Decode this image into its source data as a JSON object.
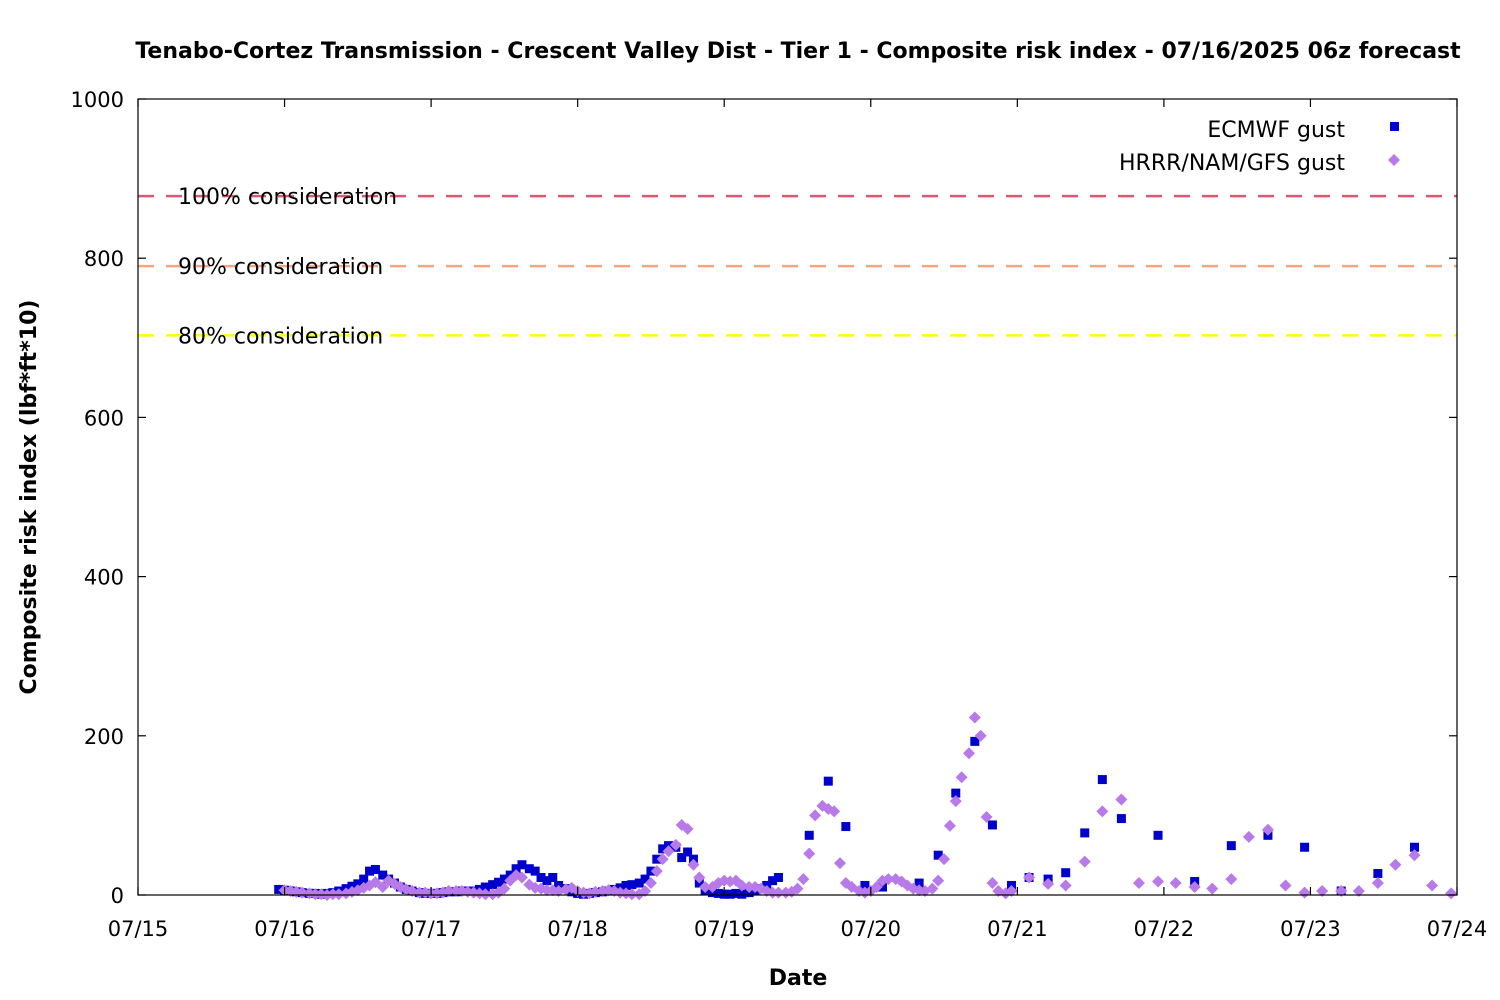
{
  "chart_data": {
    "type": "scatter",
    "title": "Tenabo-Cortez Transmission - Crescent Valley Dist - Tier 1 - Composite risk index - 07/16/2025 06z forecast",
    "xlabel": "Date",
    "ylabel": "Composite risk index (lbf*ft*10)",
    "x_unit": "days after 07/15 00z",
    "xlim": [
      0,
      9
    ],
    "ylim": [
      0,
      1000
    ],
    "x_ticks": [
      {
        "x": 0,
        "label": "07/15"
      },
      {
        "x": 1,
        "label": "07/16"
      },
      {
        "x": 2,
        "label": "07/17"
      },
      {
        "x": 3,
        "label": "07/18"
      },
      {
        "x": 4,
        "label": "07/19"
      },
      {
        "x": 5,
        "label": "07/20"
      },
      {
        "x": 6,
        "label": "07/21"
      },
      {
        "x": 7,
        "label": "07/22"
      },
      {
        "x": 8,
        "label": "07/23"
      },
      {
        "x": 9,
        "label": "07/24"
      }
    ],
    "y_ticks": [
      {
        "y": 0,
        "label": "0"
      },
      {
        "y": 200,
        "label": "200"
      },
      {
        "y": 400,
        "label": "400"
      },
      {
        "y": 600,
        "label": "600"
      },
      {
        "y": 800,
        "label": "800"
      },
      {
        "y": 1000,
        "label": "1000"
      }
    ],
    "thresholds": [
      {
        "label": "100% consideration",
        "value": 878,
        "color": "#d9596f"
      },
      {
        "label": "90% consideration",
        "value": 790,
        "color": "#f4a582"
      },
      {
        "label": "80% consideration",
        "value": 703,
        "color": "#ffff00"
      }
    ],
    "legend_position": "top-right",
    "series": [
      {
        "name": "ECMWF gust",
        "marker": "square",
        "color": "#0000cc",
        "points": [
          [
            0.96,
            7
          ],
          [
            1.0,
            6
          ],
          [
            1.04,
            5
          ],
          [
            1.08,
            4
          ],
          [
            1.12,
            3
          ],
          [
            1.17,
            2
          ],
          [
            1.21,
            2
          ],
          [
            1.25,
            1
          ],
          [
            1.29,
            2
          ],
          [
            1.33,
            3
          ],
          [
            1.37,
            5
          ],
          [
            1.42,
            8
          ],
          [
            1.46,
            11
          ],
          [
            1.5,
            14
          ],
          [
            1.54,
            20
          ],
          [
            1.58,
            30
          ],
          [
            1.62,
            32
          ],
          [
            1.67,
            25
          ],
          [
            1.71,
            20
          ],
          [
            1.75,
            15
          ],
          [
            1.79,
            10
          ],
          [
            1.83,
            7
          ],
          [
            1.87,
            5
          ],
          [
            1.92,
            3
          ],
          [
            1.96,
            2
          ],
          [
            2.0,
            2
          ],
          [
            2.04,
            2
          ],
          [
            2.08,
            3
          ],
          [
            2.12,
            4
          ],
          [
            2.17,
            4
          ],
          [
            2.21,
            5
          ],
          [
            2.25,
            5
          ],
          [
            2.29,
            5
          ],
          [
            2.33,
            7
          ],
          [
            2.37,
            10
          ],
          [
            2.42,
            13
          ],
          [
            2.46,
            16
          ],
          [
            2.5,
            20
          ],
          [
            2.54,
            25
          ],
          [
            2.58,
            33
          ],
          [
            2.62,
            38
          ],
          [
            2.67,
            33
          ],
          [
            2.71,
            30
          ],
          [
            2.75,
            22
          ],
          [
            2.79,
            18
          ],
          [
            2.83,
            22
          ],
          [
            2.87,
            12
          ],
          [
            2.92,
            8
          ],
          [
            2.96,
            4
          ],
          [
            3.0,
            2
          ],
          [
            3.04,
            1
          ],
          [
            3.08,
            2
          ],
          [
            3.12,
            3
          ],
          [
            3.17,
            4
          ],
          [
            3.21,
            5
          ],
          [
            3.25,
            7
          ],
          [
            3.29,
            9
          ],
          [
            3.33,
            12
          ],
          [
            3.37,
            13
          ],
          [
            3.42,
            15
          ],
          [
            3.46,
            20
          ],
          [
            3.5,
            30
          ],
          [
            3.54,
            45
          ],
          [
            3.58,
            58
          ],
          [
            3.62,
            62
          ],
          [
            3.67,
            60
          ],
          [
            3.71,
            47
          ],
          [
            3.75,
            54
          ],
          [
            3.79,
            45
          ],
          [
            3.83,
            15
          ],
          [
            3.87,
            6
          ],
          [
            3.92,
            3
          ],
          [
            3.96,
            2
          ],
          [
            4.0,
            1
          ],
          [
            4.04,
            1
          ],
          [
            4.08,
            2
          ],
          [
            4.12,
            1
          ],
          [
            4.17,
            3
          ],
          [
            4.21,
            5
          ],
          [
            4.25,
            8
          ],
          [
            4.29,
            12
          ],
          [
            4.33,
            18
          ],
          [
            4.37,
            22
          ],
          [
            4.58,
            75
          ],
          [
            4.71,
            143
          ],
          [
            4.83,
            86
          ],
          [
            4.96,
            12
          ],
          [
            5.08,
            10
          ],
          [
            5.33,
            15
          ],
          [
            5.46,
            50
          ],
          [
            5.58,
            128
          ],
          [
            5.71,
            193
          ],
          [
            5.83,
            88
          ],
          [
            5.96,
            12
          ],
          [
            6.08,
            22
          ],
          [
            6.21,
            20
          ],
          [
            6.33,
            28
          ],
          [
            6.46,
            78
          ],
          [
            6.58,
            145
          ],
          [
            6.71,
            96
          ],
          [
            6.96,
            75
          ],
          [
            7.21,
            17
          ],
          [
            7.46,
            62
          ],
          [
            7.71,
            75
          ],
          [
            7.96,
            60
          ],
          [
            8.21,
            5
          ],
          [
            8.46,
            27
          ],
          [
            8.71,
            60
          ]
        ]
      },
      {
        "name": "HRRR/NAM/GFS gust",
        "marker": "diamond",
        "color": "#b77ae8",
        "points": [
          [
            1.0,
            6
          ],
          [
            1.04,
            5
          ],
          [
            1.08,
            4
          ],
          [
            1.12,
            3
          ],
          [
            1.17,
            2
          ],
          [
            1.21,
            1
          ],
          [
            1.25,
            1
          ],
          [
            1.29,
            0
          ],
          [
            1.33,
            1
          ],
          [
            1.37,
            1
          ],
          [
            1.42,
            2
          ],
          [
            1.46,
            4
          ],
          [
            1.5,
            6
          ],
          [
            1.54,
            9
          ],
          [
            1.58,
            12
          ],
          [
            1.62,
            16
          ],
          [
            1.67,
            10
          ],
          [
            1.71,
            18
          ],
          [
            1.75,
            14
          ],
          [
            1.79,
            10
          ],
          [
            1.83,
            7
          ],
          [
            1.87,
            5
          ],
          [
            1.92,
            3
          ],
          [
            1.96,
            3
          ],
          [
            2.0,
            2
          ],
          [
            2.04,
            2
          ],
          [
            2.08,
            3
          ],
          [
            2.12,
            5
          ],
          [
            2.17,
            5
          ],
          [
            2.21,
            5
          ],
          [
            2.25,
            4
          ],
          [
            2.29,
            3
          ],
          [
            2.33,
            2
          ],
          [
            2.37,
            1
          ],
          [
            2.42,
            1
          ],
          [
            2.46,
            3
          ],
          [
            2.5,
            8
          ],
          [
            2.54,
            18
          ],
          [
            2.58,
            25
          ],
          [
            2.62,
            22
          ],
          [
            2.67,
            13
          ],
          [
            2.71,
            9
          ],
          [
            2.75,
            8
          ],
          [
            2.79,
            6
          ],
          [
            2.83,
            6
          ],
          [
            2.87,
            5
          ],
          [
            2.92,
            7
          ],
          [
            2.96,
            9
          ],
          [
            3.0,
            5
          ],
          [
            3.04,
            3
          ],
          [
            3.08,
            2
          ],
          [
            3.12,
            4
          ],
          [
            3.17,
            5
          ],
          [
            3.21,
            6
          ],
          [
            3.25,
            5
          ],
          [
            3.29,
            3
          ],
          [
            3.33,
            2
          ],
          [
            3.37,
            1
          ],
          [
            3.42,
            1
          ],
          [
            3.46,
            5
          ],
          [
            3.5,
            15
          ],
          [
            3.54,
            30
          ],
          [
            3.58,
            45
          ],
          [
            3.62,
            55
          ],
          [
            3.67,
            63
          ],
          [
            3.71,
            88
          ],
          [
            3.75,
            83
          ],
          [
            3.79,
            38
          ],
          [
            3.83,
            22
          ],
          [
            3.87,
            10
          ],
          [
            3.92,
            10
          ],
          [
            3.96,
            15
          ],
          [
            4.0,
            18
          ],
          [
            4.04,
            17
          ],
          [
            4.08,
            18
          ],
          [
            4.12,
            12
          ],
          [
            4.17,
            10
          ],
          [
            4.21,
            10
          ],
          [
            4.25,
            8
          ],
          [
            4.29,
            5
          ],
          [
            4.33,
            3
          ],
          [
            4.37,
            3
          ],
          [
            4.42,
            3
          ],
          [
            4.46,
            4
          ],
          [
            4.5,
            8
          ],
          [
            4.54,
            20
          ],
          [
            4.58,
            52
          ],
          [
            4.62,
            100
          ],
          [
            4.67,
            112
          ],
          [
            4.71,
            108
          ],
          [
            4.75,
            105
          ],
          [
            4.79,
            40
          ],
          [
            4.83,
            15
          ],
          [
            4.87,
            10
          ],
          [
            4.92,
            5
          ],
          [
            4.96,
            3
          ],
          [
            5.0,
            5
          ],
          [
            5.04,
            10
          ],
          [
            5.08,
            18
          ],
          [
            5.12,
            20
          ],
          [
            5.17,
            20
          ],
          [
            5.21,
            17
          ],
          [
            5.25,
            12
          ],
          [
            5.29,
            8
          ],
          [
            5.33,
            6
          ],
          [
            5.37,
            5
          ],
          [
            5.42,
            8
          ],
          [
            5.46,
            18
          ],
          [
            5.5,
            45
          ],
          [
            5.54,
            87
          ],
          [
            5.58,
            118
          ],
          [
            5.62,
            148
          ],
          [
            5.67,
            178
          ],
          [
            5.71,
            223
          ],
          [
            5.75,
            200
          ],
          [
            5.79,
            98
          ],
          [
            5.83,
            15
          ],
          [
            5.87,
            5
          ],
          [
            5.92,
            2
          ],
          [
            5.96,
            5
          ],
          [
            6.08,
            22
          ],
          [
            6.21,
            14
          ],
          [
            6.33,
            12
          ],
          [
            6.46,
            42
          ],
          [
            6.58,
            105
          ],
          [
            6.71,
            120
          ],
          [
            6.83,
            15
          ],
          [
            6.96,
            17
          ],
          [
            7.08,
            15
          ],
          [
            7.21,
            10
          ],
          [
            7.33,
            8
          ],
          [
            7.46,
            20
          ],
          [
            7.58,
            73
          ],
          [
            7.71,
            82
          ],
          [
            7.83,
            12
          ],
          [
            7.96,
            3
          ],
          [
            8.08,
            5
          ],
          [
            8.21,
            5
          ],
          [
            8.33,
            5
          ],
          [
            8.46,
            15
          ],
          [
            8.58,
            38
          ],
          [
            8.71,
            50
          ],
          [
            8.83,
            12
          ],
          [
            8.96,
            2
          ]
        ]
      }
    ]
  }
}
